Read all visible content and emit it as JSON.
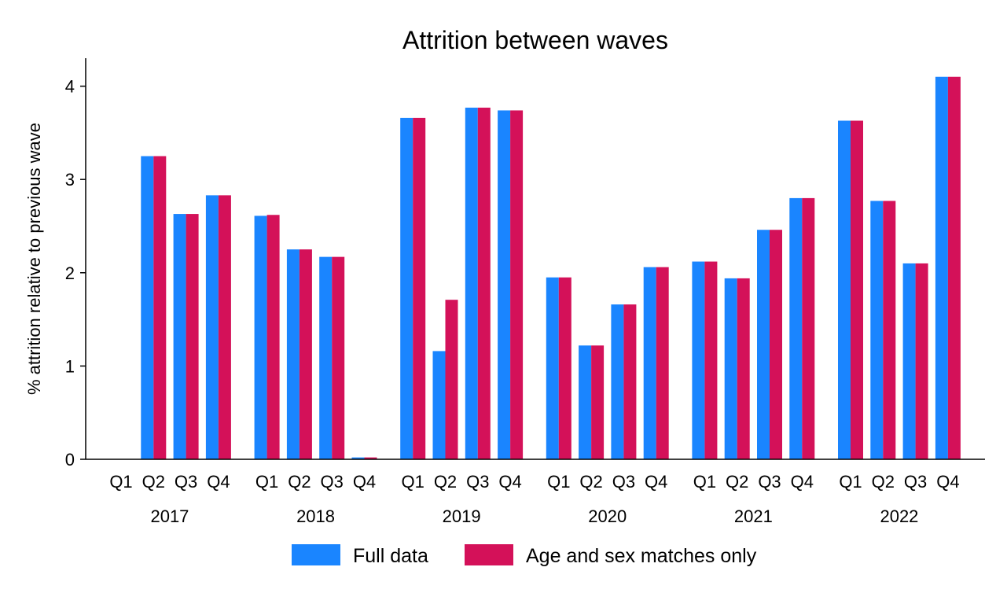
{
  "chart_data": {
    "type": "bar",
    "title": "Attrition between waves",
    "ylabel": "% attrition relative to previous wave",
    "xlabel": "",
    "ylim": [
      0,
      4.3
    ],
    "yticks": [
      0,
      1,
      2,
      3,
      4
    ],
    "groups": [
      "2017",
      "2018",
      "2019",
      "2020",
      "2021",
      "2022"
    ],
    "categories": [
      "Q1",
      "Q2",
      "Q3",
      "Q4"
    ],
    "series": [
      {
        "name": "Full data",
        "color": "#1a85ff",
        "values": [
          [
            null,
            3.25,
            2.63,
            2.83
          ],
          [
            2.61,
            2.25,
            2.17,
            0.02
          ],
          [
            3.66,
            1.16,
            3.77,
            3.74
          ],
          [
            1.95,
            1.22,
            1.66,
            2.06
          ],
          [
            2.12,
            1.94,
            2.46,
            2.8
          ],
          [
            3.63,
            2.77,
            2.1,
            4.1
          ]
        ]
      },
      {
        "name": "Age and sex matches only",
        "color": "#d41159",
        "values": [
          [
            null,
            3.25,
            2.63,
            2.83
          ],
          [
            2.62,
            2.25,
            2.17,
            0.02
          ],
          [
            3.66,
            1.71,
            3.77,
            3.74
          ],
          [
            1.95,
            1.22,
            1.66,
            2.06
          ],
          [
            2.12,
            1.94,
            2.46,
            2.8
          ],
          [
            3.63,
            2.77,
            2.1,
            4.1
          ]
        ]
      }
    ],
    "legend_position": "bottom"
  }
}
